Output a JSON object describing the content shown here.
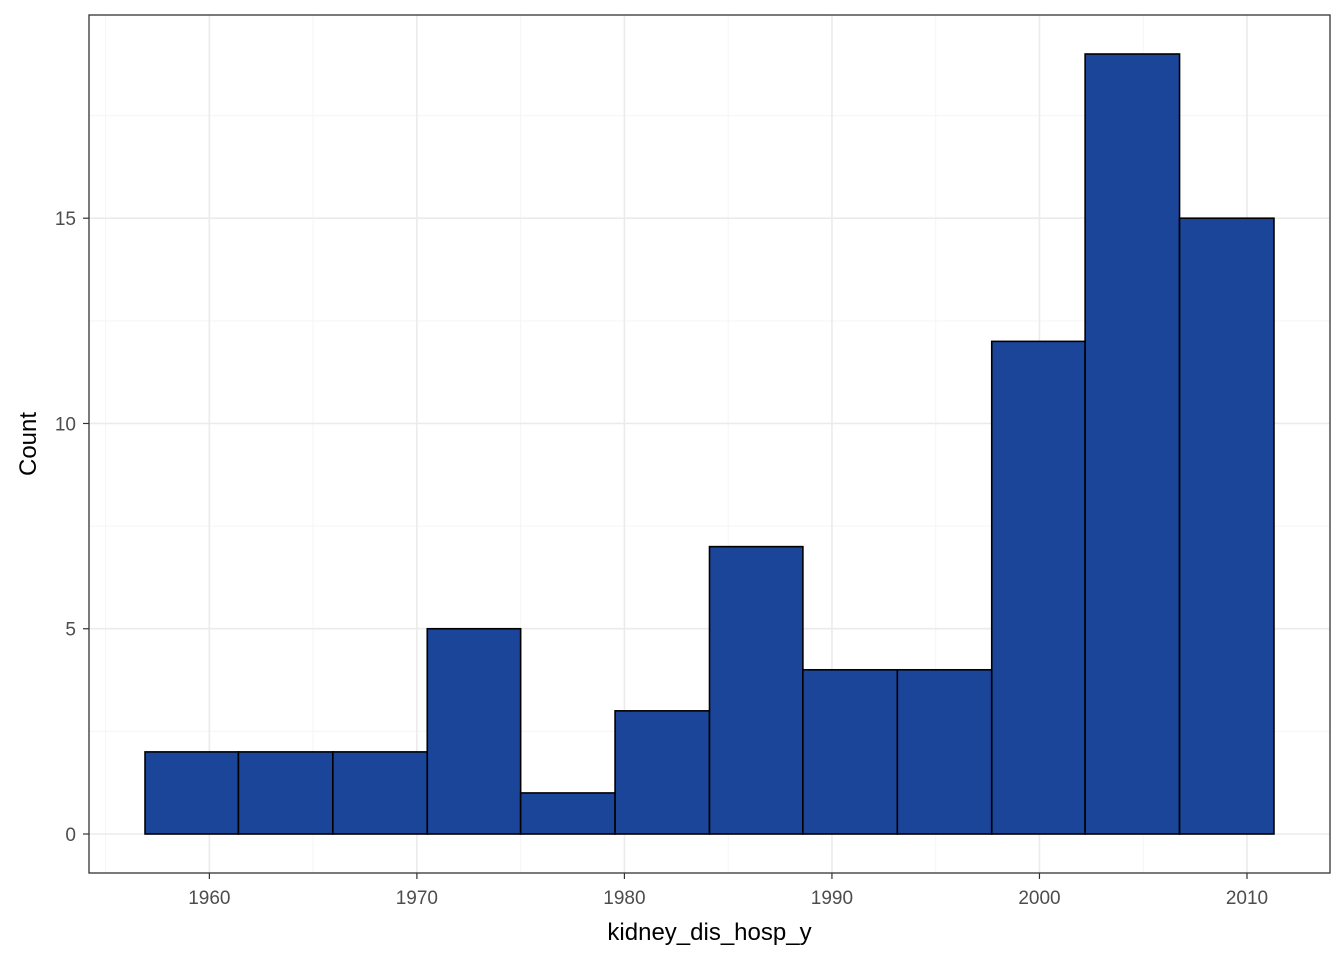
{
  "chart_data": {
    "type": "bar",
    "subtype": "histogram",
    "title": "",
    "xlabel": "kidney_dis_hosp_y",
    "ylabel": "Count",
    "bin_edges": [
      1956.9,
      1961.4,
      1965.95,
      1970.5,
      1975.0,
      1979.55,
      1984.1,
      1988.6,
      1993.15,
      1997.7,
      2002.2,
      2006.75,
      2011.3
    ],
    "values": [
      2,
      2,
      2,
      5,
      1,
      3,
      7,
      4,
      4,
      12,
      19,
      15
    ],
    "xlim": [
      1954.2,
      2014.0
    ],
    "ylim": [
      -0.95,
      19.95
    ],
    "x_ticks": [
      1960,
      1970,
      1980,
      1990,
      2000,
      2010
    ],
    "x_tick_labels": [
      "1960",
      "1970",
      "1980",
      "1990",
      "2000",
      "2010"
    ],
    "y_ticks": [
      0,
      5,
      10,
      15
    ],
    "y_tick_labels": [
      "0",
      "5",
      "10",
      "15"
    ],
    "grid": true,
    "legend": "none",
    "colors": {
      "bar_fill": "#1a4599",
      "bar_stroke": "#000000",
      "grid_major": "#ebebeb",
      "grid_minor": "#f5f5f5",
      "panel_border": "#333333",
      "tick_text": "#4d4d4d"
    }
  }
}
